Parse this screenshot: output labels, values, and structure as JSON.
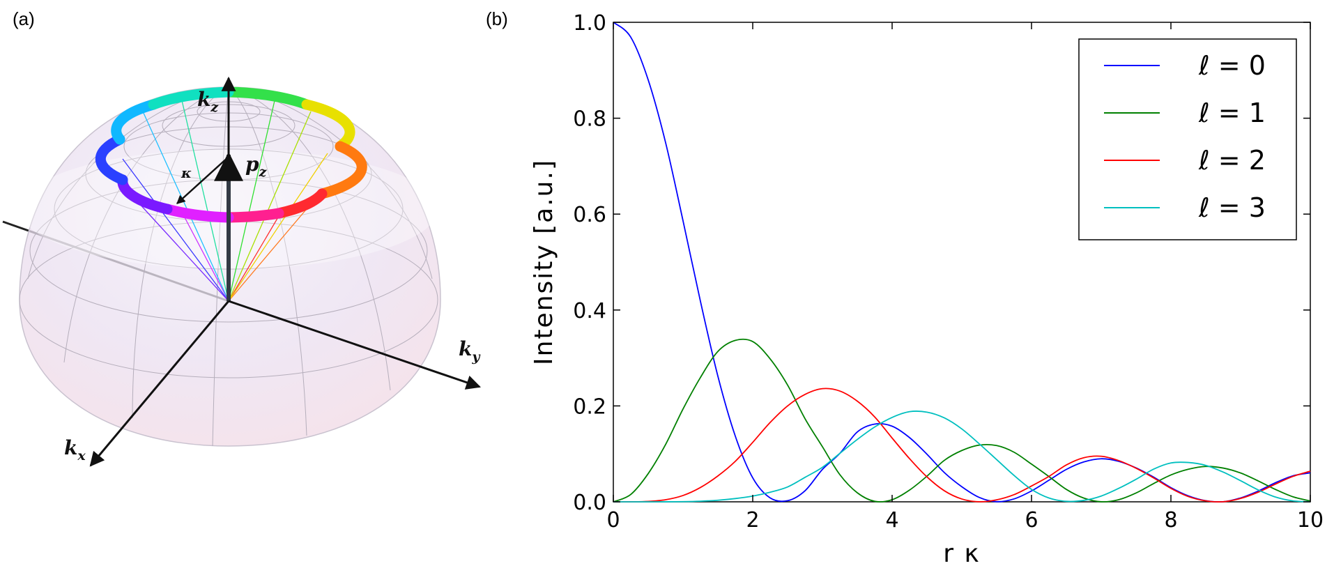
{
  "panel_a": {
    "label": "(a)",
    "axis_kx": {
      "main": "k",
      "sub": "x"
    },
    "axis_ky": {
      "main": "k",
      "sub": "y"
    },
    "axis_kz": {
      "main": "k",
      "sub": "z"
    },
    "pz": {
      "main": "p",
      "sub": "z"
    },
    "kappa": "κ"
  },
  "panel_b": {
    "label": "(b)",
    "chart_data": {
      "type": "line",
      "xlabel": "r κ",
      "ylabel": "Intensity [a.u.]",
      "xlim": [
        0,
        10
      ],
      "ylim": [
        0,
        1.0
      ],
      "xticks": [
        "0",
        "2",
        "4",
        "6",
        "8",
        "10"
      ],
      "yticks": [
        "0.0",
        "0.2",
        "0.4",
        "0.6",
        "0.8",
        "1.0"
      ],
      "legend_placement": "top-right",
      "grid": false,
      "x": [
        0,
        0.25,
        0.5,
        0.75,
        1.0,
        1.25,
        1.5,
        1.75,
        2.0,
        2.25,
        2.5,
        2.75,
        3.0,
        3.25,
        3.5,
        3.75,
        4.0,
        4.25,
        4.5,
        4.75,
        5.0,
        5.25,
        5.5,
        5.75,
        6.0,
        6.25,
        6.5,
        6.75,
        7.0,
        7.25,
        7.5,
        7.75,
        8.0,
        8.25,
        8.5,
        8.75,
        9.0,
        9.25,
        9.5,
        9.75,
        10.0
      ],
      "series": [
        {
          "name": "ℓ = 0",
          "color": "#0000ff",
          "values": [
            1.0,
            0.969,
            0.88,
            0.749,
            0.586,
            0.418,
            0.262,
            0.137,
            0.05,
            0.0081,
            0.0023,
            0.023,
            0.0676,
            0.101,
            0.1457,
            0.1621,
            0.1577,
            0.1339,
            0.0992,
            0.0609,
            0.0315,
            0.0092,
            0.0003,
            0.0061,
            0.0227,
            0.045,
            0.0676,
            0.0832,
            0.0898,
            0.0845,
            0.0707,
            0.0517,
            0.0296,
            0.0124,
            0.0023,
            0.0002,
            0.0081,
            0.0223,
            0.0398,
            0.0542,
            0.0605
          ]
        },
        {
          "name": "ℓ = 1",
          "color": "#008000",
          "values": [
            0.0,
            0.0154,
            0.0588,
            0.1196,
            0.1936,
            0.2594,
            0.3136,
            0.3366,
            0.3342,
            0.2981,
            0.2436,
            0.1735,
            0.1149,
            0.0567,
            0.0189,
            0.001,
            0.0044,
            0.0245,
            0.0535,
            0.0866,
            0.107,
            0.1183,
            0.1173,
            0.1034,
            0.0786,
            0.0527,
            0.0259,
            0.0078,
            0.0001,
            0.0044,
            0.0184,
            0.0379,
            0.056,
            0.0679,
            0.0738,
            0.0704,
            0.0601,
            0.0437,
            0.0258,
            0.0105,
            0.0018
          ]
        },
        {
          "name": "ℓ = 2",
          "color": "#ff0000",
          "values": [
            0.0,
            6e-05,
            0.0009,
            0.0044,
            0.0132,
            0.0299,
            0.054,
            0.0845,
            0.124,
            0.1655,
            0.2,
            0.224,
            0.236,
            0.231,
            0.21,
            0.177,
            0.133,
            0.09,
            0.052,
            0.023,
            0.0059,
            0.0002,
            0.0042,
            0.015,
            0.033,
            0.053,
            0.077,
            0.092,
            0.095,
            0.086,
            0.07,
            0.05,
            0.028,
            0.011,
            0.002,
            0.0002,
            0.007,
            0.02,
            0.037,
            0.053,
            0.064
          ]
        },
        {
          "name": "ℓ = 3",
          "color": "#00bfbf",
          "values": [
            0.0,
            0.0,
            0.0,
            0.0001,
            0.0004,
            0.0013,
            0.0033,
            0.0068,
            0.012,
            0.02,
            0.031,
            0.051,
            0.072,
            0.101,
            0.13,
            0.156,
            0.176,
            0.188,
            0.187,
            0.175,
            0.152,
            0.121,
            0.088,
            0.055,
            0.026,
            0.008,
            0.001,
            0.003,
            0.012,
            0.028,
            0.047,
            0.068,
            0.081,
            0.082,
            0.076,
            0.062,
            0.044,
            0.025,
            0.01,
            0.002,
            0.0002
          ]
        }
      ]
    }
  }
}
